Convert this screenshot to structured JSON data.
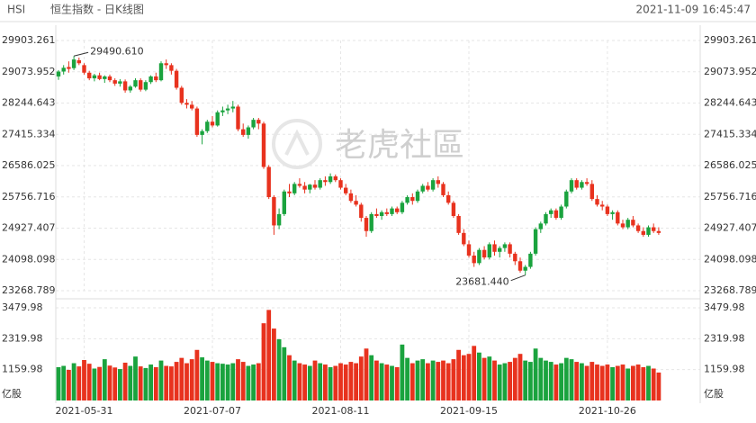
{
  "header": {
    "symbol": "HSI",
    "name": "恒生指数 - 日K线图",
    "time": "2021-11-09 16:45:47"
  },
  "watermark": "老虎社區",
  "chart_data": [
    {
      "type": "candlestick",
      "up_color": "#1aa33e",
      "down_color": "#e8321e",
      "grid": true,
      "max_label": "29490.610",
      "min_label": "23681.440",
      "ylim": [
        23268.789,
        29903.261
      ],
      "yticks": [
        29903.261,
        29073.952,
        28244.643,
        27415.334,
        26586.025,
        25756.716,
        24927.407,
        24098.098,
        23268.789
      ],
      "xlim": [
        -0.5,
        117.5
      ],
      "candles": [
        [
          28950,
          29120,
          28860,
          29080
        ],
        [
          29080,
          29250,
          29000,
          29180
        ],
        [
          29200,
          29350,
          29050,
          29150
        ],
        [
          29170,
          29490.61,
          29120,
          29400
        ],
        [
          29380,
          29450,
          29250,
          29300
        ],
        [
          29250,
          29300,
          29000,
          29050
        ],
        [
          29050,
          29100,
          28850,
          28900
        ],
        [
          28900,
          29020,
          28820,
          28980
        ],
        [
          28980,
          29050,
          28850,
          28880
        ],
        [
          28880,
          28980,
          28780,
          28950
        ],
        [
          28950,
          29000,
          28800,
          28850
        ],
        [
          28850,
          28900,
          28700,
          28760
        ],
        [
          28760,
          28880,
          28680,
          28820
        ],
        [
          28820,
          28870,
          28520,
          28580
        ],
        [
          28580,
          28720,
          28520,
          28680
        ],
        [
          28680,
          28900,
          28650,
          28850
        ],
        [
          28850,
          28900,
          28550,
          28600
        ],
        [
          28600,
          28850,
          28560,
          28800
        ],
        [
          28800,
          28980,
          28750,
          28950
        ],
        [
          28950,
          29050,
          28800,
          28850
        ],
        [
          28850,
          29350,
          28820,
          29300
        ],
        [
          29300,
          29400,
          29150,
          29250
        ],
        [
          29250,
          29300,
          29000,
          29100
        ],
        [
          29100,
          29150,
          28600,
          28650
        ],
        [
          28650,
          28700,
          28200,
          28250
        ],
        [
          28250,
          28350,
          28100,
          28200
        ],
        [
          28200,
          28300,
          28050,
          28100
        ],
        [
          28100,
          28150,
          27350,
          27400
        ],
        [
          27400,
          27550,
          27150,
          27500
        ],
        [
          27500,
          27800,
          27450,
          27750
        ],
        [
          27750,
          27900,
          27600,
          27650
        ],
        [
          27650,
          28050,
          27620,
          28000
        ],
        [
          28000,
          28150,
          27900,
          28050
        ],
        [
          28050,
          28200,
          27950,
          28100
        ],
        [
          28100,
          28300,
          28000,
          28150
        ],
        [
          28150,
          28200,
          27500,
          27550
        ],
        [
          27550,
          27700,
          27350,
          27400
        ],
        [
          27400,
          27650,
          27300,
          27600
        ],
        [
          27600,
          27850,
          27550,
          27800
        ],
        [
          27800,
          27850,
          27550,
          27700
        ],
        [
          27700,
          27750,
          26500,
          26550
        ],
        [
          26550,
          26600,
          25700,
          25750
        ],
        [
          25750,
          25800,
          24750,
          25000
        ],
        [
          25000,
          25450,
          24900,
          25300
        ],
        [
          25300,
          25950,
          25250,
          25900
        ],
        [
          25900,
          26100,
          25750,
          25850
        ],
        [
          25850,
          26150,
          25800,
          26100
        ],
        [
          26100,
          26250,
          26000,
          26050
        ],
        [
          26050,
          26150,
          25850,
          25950
        ],
        [
          25950,
          26100,
          25850,
          26080
        ],
        [
          26080,
          26200,
          25950,
          26000
        ],
        [
          26000,
          26250,
          25950,
          26200
        ],
        [
          26200,
          26300,
          26050,
          26150
        ],
        [
          26150,
          26380,
          26100,
          26300
        ],
        [
          26300,
          26350,
          26150,
          26200
        ],
        [
          26200,
          26250,
          25950,
          26000
        ],
        [
          26000,
          26100,
          25800,
          25850
        ],
        [
          25850,
          25950,
          25600,
          25650
        ],
        [
          25650,
          25800,
          25500,
          25550
        ],
        [
          25550,
          25600,
          25100,
          25200
        ],
        [
          25200,
          25250,
          24700,
          24850
        ],
        [
          24850,
          25350,
          24800,
          25300
        ],
        [
          25300,
          25450,
          25200,
          25250
        ],
        [
          25250,
          25400,
          25150,
          25350
        ],
        [
          25350,
          25450,
          25250,
          25300
        ],
        [
          25300,
          25500,
          25250,
          25450
        ],
        [
          25450,
          25500,
          25300,
          25350
        ],
        [
          25350,
          25650,
          25300,
          25600
        ],
        [
          25600,
          25800,
          25550,
          25750
        ],
        [
          25750,
          25850,
          25550,
          25650
        ],
        [
          25650,
          25950,
          25600,
          25900
        ],
        [
          25900,
          26100,
          25850,
          26050
        ],
        [
          26050,
          26150,
          25900,
          25950
        ],
        [
          25950,
          26250,
          25900,
          26200
        ],
        [
          26200,
          26300,
          26000,
          26100
        ],
        [
          26100,
          26150,
          25750,
          25800
        ],
        [
          25800,
          25900,
          25550,
          25600
        ],
        [
          25600,
          25650,
          25200,
          25250
        ],
        [
          25250,
          25300,
          24750,
          24800
        ],
        [
          24800,
          24900,
          24450,
          24500
        ],
        [
          24500,
          24600,
          24150,
          24200
        ],
        [
          24200,
          24300,
          23900,
          24000
        ],
        [
          24000,
          24400,
          23950,
          24350
        ],
        [
          24350,
          24450,
          24100,
          24150
        ],
        [
          24150,
          24550,
          24100,
          24500
        ],
        [
          24500,
          24600,
          24200,
          24300
        ],
        [
          24300,
          24450,
          24150,
          24400
        ],
        [
          24400,
          24550,
          24300,
          24500
        ],
        [
          24500,
          24550,
          24150,
          24250
        ],
        [
          24250,
          24300,
          23950,
          24050
        ],
        [
          24050,
          24150,
          23750,
          23800
        ],
        [
          23800,
          23950,
          23681.44,
          23900
        ],
        [
          23900,
          24300,
          23850,
          24250
        ],
        [
          24250,
          24950,
          24200,
          24900
        ],
        [
          24900,
          25100,
          24800,
          25050
        ],
        [
          25050,
          25350,
          25000,
          25300
        ],
        [
          25300,
          25450,
          25200,
          25400
        ],
        [
          25400,
          25450,
          25150,
          25200
        ],
        [
          25200,
          25550,
          25150,
          25500
        ],
        [
          25500,
          25950,
          25450,
          25900
        ],
        [
          25900,
          26250,
          25850,
          26200
        ],
        [
          26200,
          26250,
          25950,
          26000
        ],
        [
          26000,
          26200,
          25950,
          26150
        ],
        [
          26150,
          26250,
          26050,
          26100
        ],
        [
          26100,
          26200,
          25650,
          25700
        ],
        [
          25700,
          25800,
          25500,
          25550
        ],
        [
          25550,
          25650,
          25400,
          25500
        ],
        [
          25500,
          25550,
          25250,
          25300
        ],
        [
          25300,
          25400,
          25150,
          25350
        ],
        [
          25350,
          25400,
          25000,
          25050
        ],
        [
          25050,
          25150,
          24900,
          24950
        ],
        [
          24950,
          25200,
          24900,
          25150
        ],
        [
          25150,
          25250,
          24950,
          25000
        ],
        [
          25000,
          25050,
          24800,
          24850
        ],
        [
          24850,
          24950,
          24700,
          24750
        ],
        [
          24750,
          25000,
          24700,
          24950
        ],
        [
          24950,
          25050,
          24800,
          24850
        ],
        [
          24850,
          24950,
          24750,
          24800
        ]
      ]
    },
    {
      "type": "bar",
      "unit_label": "亿股",
      "grid": true,
      "ylim": [
        0,
        3479.98
      ],
      "yticks": [
        1159.98,
        2319.98,
        3479.98
      ],
      "xlim": [
        -0.5,
        117.5
      ],
      "xticks": [
        {
          "value": 5,
          "label": "2021-05-31"
        },
        {
          "value": 30,
          "label": "2021-07-07"
        },
        {
          "value": 55,
          "label": "2021-08-11"
        },
        {
          "value": 80,
          "label": "2021-09-15"
        },
        {
          "value": 107,
          "label": "2021-10-26"
        }
      ],
      "values": [
        1250,
        1300,
        1150,
        1400,
        1280,
        1520,
        1380,
        1200,
        1260,
        1550,
        1310,
        1240,
        1180,
        1420,
        1300,
        1650,
        1280,
        1220,
        1350,
        1250,
        1500,
        1300,
        1280,
        1450,
        1600,
        1400,
        1550,
        1900,
        1620,
        1500,
        1450,
        1400,
        1380,
        1350,
        1400,
        1550,
        1450,
        1300,
        1350,
        1400,
        2900,
        3400,
        2700,
        2300,
        2000,
        1700,
        1500,
        1400,
        1350,
        1300,
        1500,
        1400,
        1350,
        1250,
        1300,
        1400,
        1350,
        1450,
        1400,
        1650,
        1950,
        1700,
        1500,
        1400,
        1350,
        1300,
        1250,
        2100,
        1600,
        1400,
        1500,
        1550,
        1400,
        1500,
        1450,
        1500,
        1400,
        1550,
        1900,
        1700,
        1750,
        2050,
        1800,
        1600,
        1650,
        1500,
        1350,
        1400,
        1450,
        1600,
        1750,
        1500,
        1450,
        1950,
        1600,
        1500,
        1450,
        1350,
        1400,
        1600,
        1550,
        1450,
        1400,
        1300,
        1450,
        1350,
        1300,
        1350,
        1250,
        1300,
        1350,
        1200,
        1300,
        1350,
        1250,
        1300,
        1200,
        1050
      ]
    }
  ]
}
